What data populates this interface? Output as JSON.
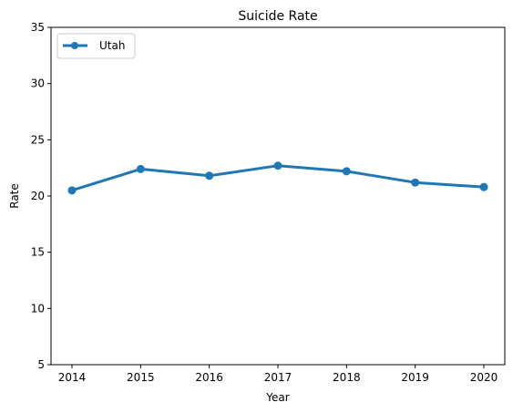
{
  "chart_data": {
    "type": "line",
    "title": "Suicide Rate",
    "xlabel": "Year",
    "ylabel": "Rate",
    "x": [
      2014,
      2015,
      2016,
      2017,
      2018,
      2019,
      2020
    ],
    "xticks": [
      "2014",
      "2015",
      "2016",
      "2017",
      "2018",
      "2019",
      "2020"
    ],
    "yticks": [
      5,
      10,
      15,
      20,
      25,
      30,
      35
    ],
    "ylim": [
      5,
      35
    ],
    "grid": false,
    "legend_position": "top-left",
    "series": [
      {
        "name": "Utah",
        "color": "#1f77b4",
        "values": [
          20.5,
          22.4,
          21.8,
          22.7,
          22.2,
          21.2,
          20.8
        ]
      }
    ]
  }
}
